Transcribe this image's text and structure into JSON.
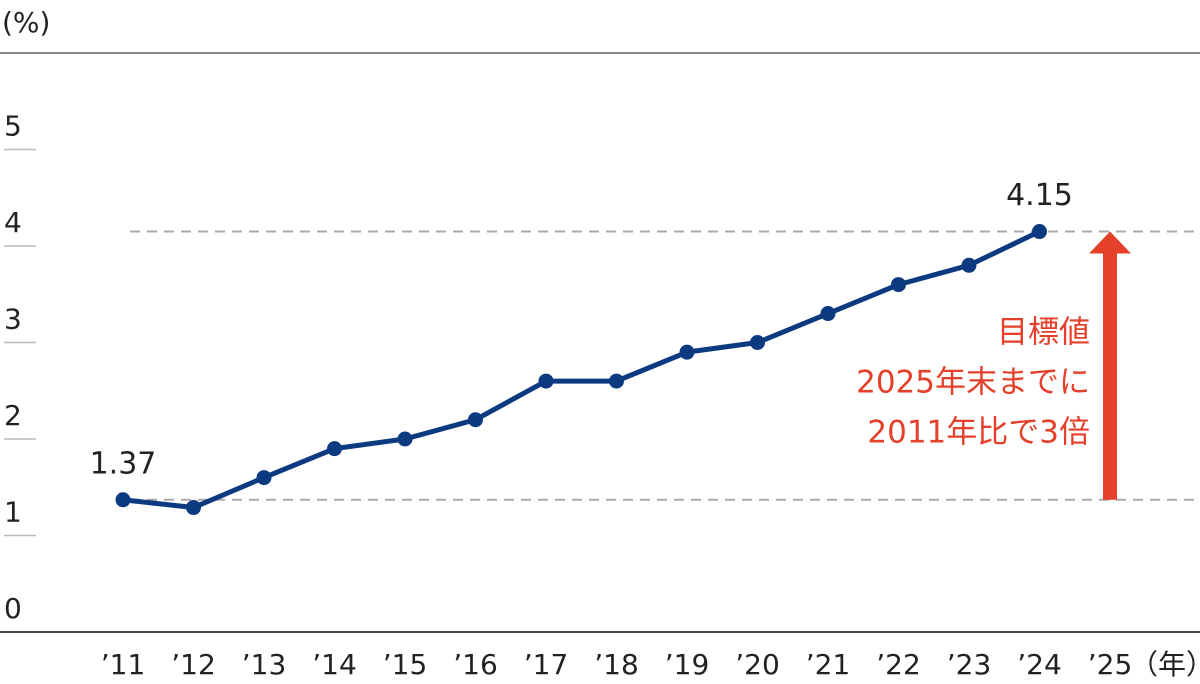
{
  "chart_data": {
    "type": "line",
    "y_unit": "(%)",
    "x_unit": "（年）",
    "categories": [
      "’11",
      "’12",
      "’13",
      "’14",
      "’15",
      "’16",
      "’17",
      "’18",
      "’19",
      "’20",
      "’21",
      "’22",
      "’23",
      "’24",
      "’25"
    ],
    "values": [
      1.37,
      1.29,
      1.6,
      1.9,
      2.0,
      2.2,
      2.6,
      2.6,
      2.9,
      3.0,
      3.3,
      3.6,
      3.8,
      4.15,
      null
    ],
    "color": "#0c3a80",
    "ylim": [
      0,
      6
    ],
    "yticks": [
      0,
      1,
      2,
      3,
      4,
      5
    ],
    "annotation": {
      "lines": [
        "目標値",
        "2025年末までに",
        "2011年比で3倍"
      ],
      "color": "#e5402a"
    }
  }
}
